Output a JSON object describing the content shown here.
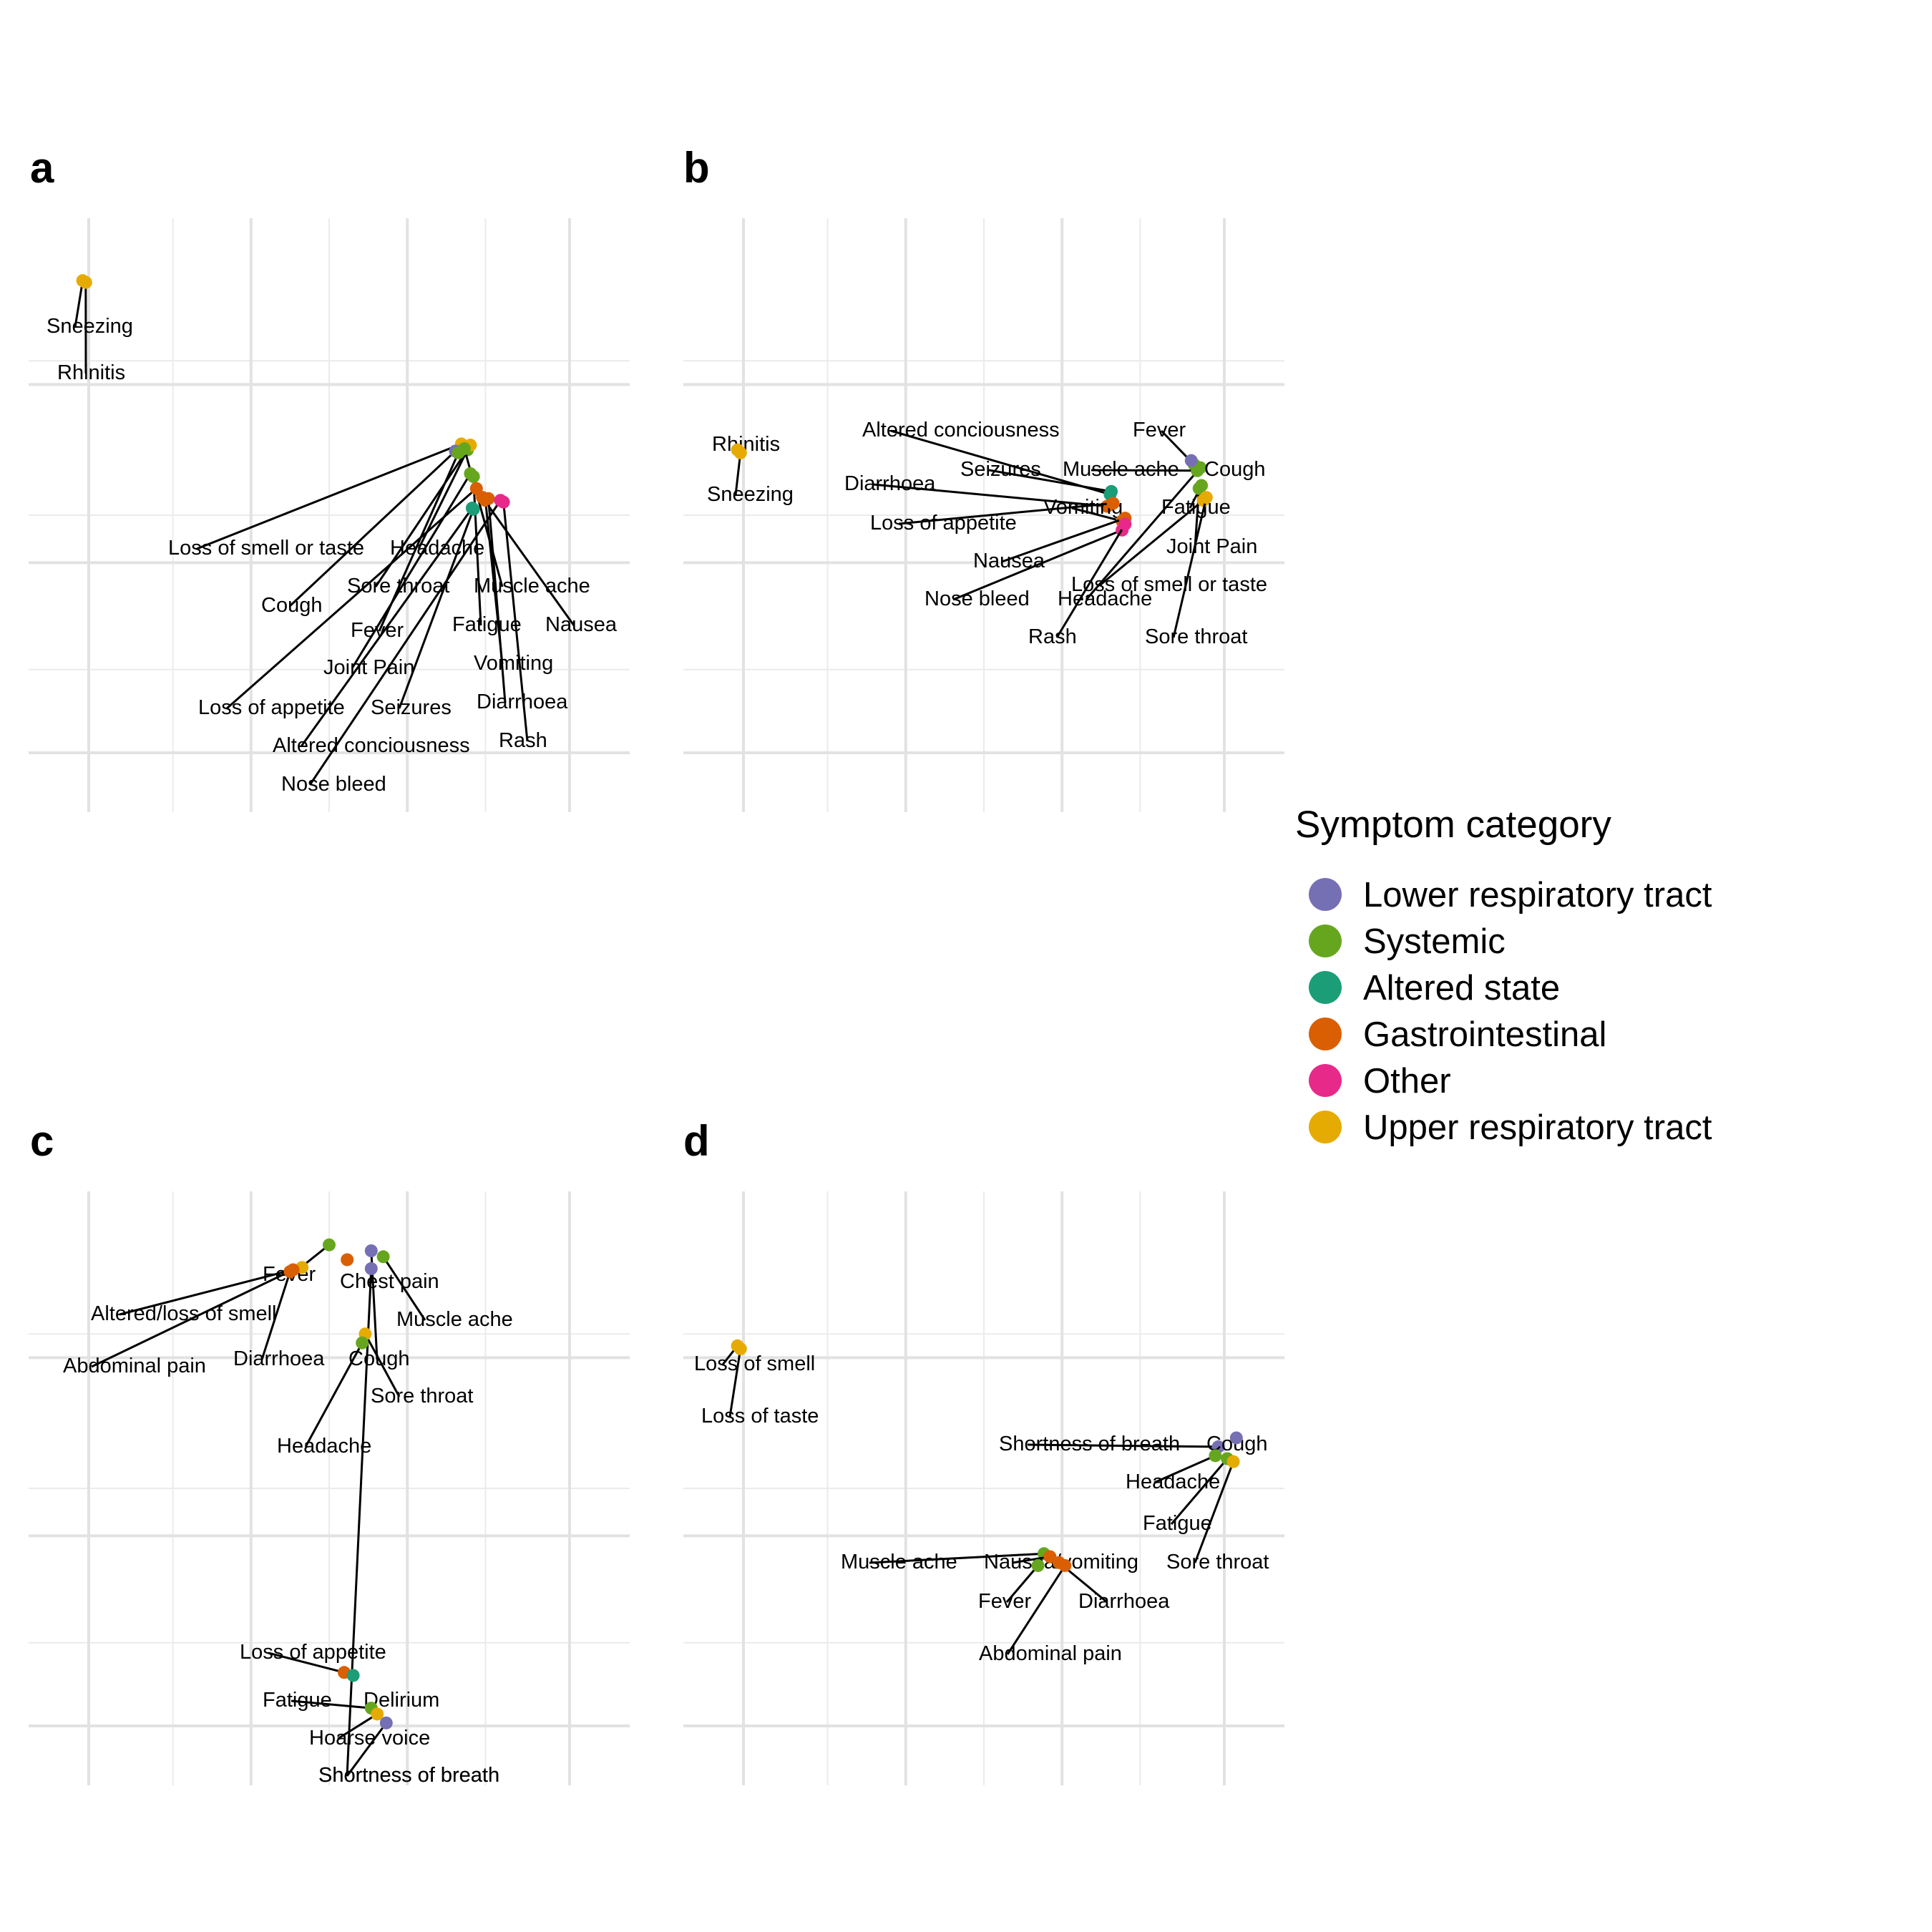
{
  "categories": {
    "lrt": {
      "name": "Lower respiratory tract",
      "color": "#7570B3"
    },
    "sys": {
      "name": "Systemic",
      "color": "#66A61E"
    },
    "alt": {
      "name": "Altered state",
      "color": "#1B9E77"
    },
    "gi": {
      "name": "Gastrointestinal",
      "color": "#D95F02"
    },
    "oth": {
      "name": "Other",
      "color": "#E7298A"
    },
    "urt": {
      "name": "Upper respiratory tract",
      "color": "#E6AB02"
    }
  },
  "legend": {
    "title": "Symptom category",
    "entries": [
      "Lower respiratory tract",
      "Systemic",
      "Altered state",
      "Gastrointestinal",
      "Other",
      "Upper respiratory tract"
    ]
  },
  "chart_data": [
    {
      "type": "scatter",
      "panel": "a",
      "grid": true,
      "axes_labels_shown": false,
      "points": [
        {
          "label": "Sneezing",
          "category": "urt",
          "x": 0.9,
          "y": 8.95
        },
        {
          "label": "Rhinitis",
          "category": "urt",
          "x": 0.95,
          "y": 8.92
        },
        {
          "label": "Loss of smell or taste",
          "category": "urt",
          "x": 7.2,
          "y": 6.2
        },
        {
          "label": "Headache",
          "category": "sys",
          "x": 7.3,
          "y": 6.1
        },
        {
          "label": "Sore throat",
          "category": "urt",
          "x": 7.35,
          "y": 6.18
        },
        {
          "label": "Cough",
          "category": "lrt",
          "x": 7.1,
          "y": 6.08
        },
        {
          "label": "Fever",
          "category": "sys",
          "x": 7.15,
          "y": 6.05
        },
        {
          "label": "Muscle ache",
          "category": "sys",
          "x": 7.25,
          "y": 6.12
        },
        {
          "label": "Fatigue",
          "category": "sys",
          "x": 7.4,
          "y": 5.65
        },
        {
          "label": "Nausea",
          "category": "gi",
          "x": 7.55,
          "y": 5.3
        },
        {
          "label": "Joint Pain",
          "category": "sys",
          "x": 7.35,
          "y": 5.7
        },
        {
          "label": "Vomiting",
          "category": "gi",
          "x": 7.6,
          "y": 5.25
        },
        {
          "label": "Loss of appetite",
          "category": "gi",
          "x": 7.45,
          "y": 5.45
        },
        {
          "label": "Seizures",
          "category": "alt",
          "x": 7.4,
          "y": 5.1
        },
        {
          "label": "Diarrhoea",
          "category": "gi",
          "x": 7.65,
          "y": 5.28
        },
        {
          "label": "Altered conciousness",
          "category": "alt",
          "x": 7.38,
          "y": 5.12
        },
        {
          "label": "Rash",
          "category": "oth",
          "x": 7.9,
          "y": 5.22
        },
        {
          "label": "Nose bleed",
          "category": "oth",
          "x": 7.85,
          "y": 5.25
        }
      ]
    },
    {
      "type": "scatter",
      "panel": "b",
      "grid": true,
      "axes_labels_shown": false,
      "points": [
        {
          "label": "Rhinitis",
          "category": "urt",
          "x": 0.9,
          "y": 6.1
        },
        {
          "label": "Sneezing",
          "category": "urt",
          "x": 0.95,
          "y": 6.05
        },
        {
          "label": "Altered conciousness",
          "category": "alt",
          "x": 7.1,
          "y": 5.35
        },
        {
          "label": "Seizures",
          "category": "alt",
          "x": 7.12,
          "y": 5.4
        },
        {
          "label": "Diarrhoea",
          "category": "gi",
          "x": 7.05,
          "y": 5.15
        },
        {
          "label": "Vomiting",
          "category": "gi",
          "x": 7.3,
          "y": 4.9
        },
        {
          "label": "Loss of appetite",
          "category": "gi",
          "x": 7.15,
          "y": 5.2
        },
        {
          "label": "Nausea",
          "category": "gi",
          "x": 7.35,
          "y": 4.95
        },
        {
          "label": "Nose bleed",
          "category": "oth",
          "x": 7.3,
          "y": 4.75
        },
        {
          "label": "Rash",
          "category": "oth",
          "x": 7.35,
          "y": 4.85
        },
        {
          "label": "Headache",
          "category": "sys",
          "x": 8.6,
          "y": 5.8
        },
        {
          "label": "Fever",
          "category": "sys",
          "x": 8.5,
          "y": 5.85
        },
        {
          "label": "Muscle ache",
          "category": "sys",
          "x": 8.55,
          "y": 5.75
        },
        {
          "label": "Cough",
          "category": "lrt",
          "x": 8.45,
          "y": 5.92
        },
        {
          "label": "Fatigue",
          "category": "sys",
          "x": 8.62,
          "y": 5.5
        },
        {
          "label": "Joint Pain",
          "category": "sys",
          "x": 8.58,
          "y": 5.45
        },
        {
          "label": "Loss of smell or taste",
          "category": "urt",
          "x": 8.65,
          "y": 5.25
        },
        {
          "label": "Sore throat",
          "category": "urt",
          "x": 8.7,
          "y": 5.3
        }
      ]
    },
    {
      "type": "scatter",
      "panel": "c",
      "grid": true,
      "axes_labels_shown": false,
      "points": [
        {
          "label": "Fever",
          "category": "sys",
          "x": 5.0,
          "y": 9.1
        },
        {
          "label": "Chest pain",
          "category": "gi",
          "x": 5.3,
          "y": 8.85
        },
        {
          "label": "Altered/loss of smell",
          "category": "urt",
          "x": 4.55,
          "y": 8.72
        },
        {
          "label": "Muscle ache",
          "category": "sys",
          "x": 5.9,
          "y": 8.9
        },
        {
          "label": "Abdominal pain",
          "category": "gi",
          "x": 4.4,
          "y": 8.68
        },
        {
          "label": "Diarrhoea",
          "category": "gi",
          "x": 4.35,
          "y": 8.65
        },
        {
          "label": "Cough",
          "category": "lrt",
          "x": 5.7,
          "y": 9.0
        },
        {
          "label": "Shortness of breath",
          "category": "lrt",
          "x": 5.7,
          "y": 8.7
        },
        {
          "label": "Sore throat",
          "category": "urt",
          "x": 5.6,
          "y": 7.6
        },
        {
          "label": "Headache",
          "category": "sys",
          "x": 5.55,
          "y": 7.45
        },
        {
          "label": "Loss of appetite",
          "category": "gi",
          "x": 5.25,
          "y": 1.9
        },
        {
          "label": "Delirium",
          "category": "alt",
          "x": 5.4,
          "y": 1.85
        },
        {
          "label": "Fatigue",
          "category": "sys",
          "x": 5.7,
          "y": 1.3
        },
        {
          "label": "Hoarse voice",
          "category": "urt",
          "x": 5.8,
          "y": 1.2
        },
        {
          "label": "Shortness of breath",
          "category": "lrt",
          "x": 5.95,
          "y": 1.05
        }
      ]
    },
    {
      "type": "scatter",
      "panel": "d",
      "grid": true,
      "axes_labels_shown": false,
      "points": [
        {
          "label": "Loss of smell",
          "category": "urt",
          "x": 0.9,
          "y": 7.4
        },
        {
          "label": "Loss of taste",
          "category": "urt",
          "x": 0.95,
          "y": 7.35
        },
        {
          "label": "Shortness of breath",
          "category": "lrt",
          "x": 8.9,
          "y": 5.7
        },
        {
          "label": "Cough",
          "category": "lrt",
          "x": 9.2,
          "y": 5.85
        },
        {
          "label": "Headache",
          "category": "sys",
          "x": 8.85,
          "y": 5.55
        },
        {
          "label": "Fatigue",
          "category": "sys",
          "x": 9.05,
          "y": 5.5
        },
        {
          "label": "Sore throat",
          "category": "urt",
          "x": 9.15,
          "y": 5.45
        },
        {
          "label": "Muscle ache",
          "category": "sys",
          "x": 6.0,
          "y": 3.9
        },
        {
          "label": "Nausea/vomiting",
          "category": "gi",
          "x": 6.1,
          "y": 3.85
        },
        {
          "label": "Fever",
          "category": "sys",
          "x": 5.9,
          "y": 3.7
        },
        {
          "label": "Diarrhoea",
          "category": "gi",
          "x": 6.25,
          "y": 3.75
        },
        {
          "label": "Abdominal pain",
          "category": "gi",
          "x": 6.35,
          "y": 3.7
        }
      ]
    }
  ]
}
